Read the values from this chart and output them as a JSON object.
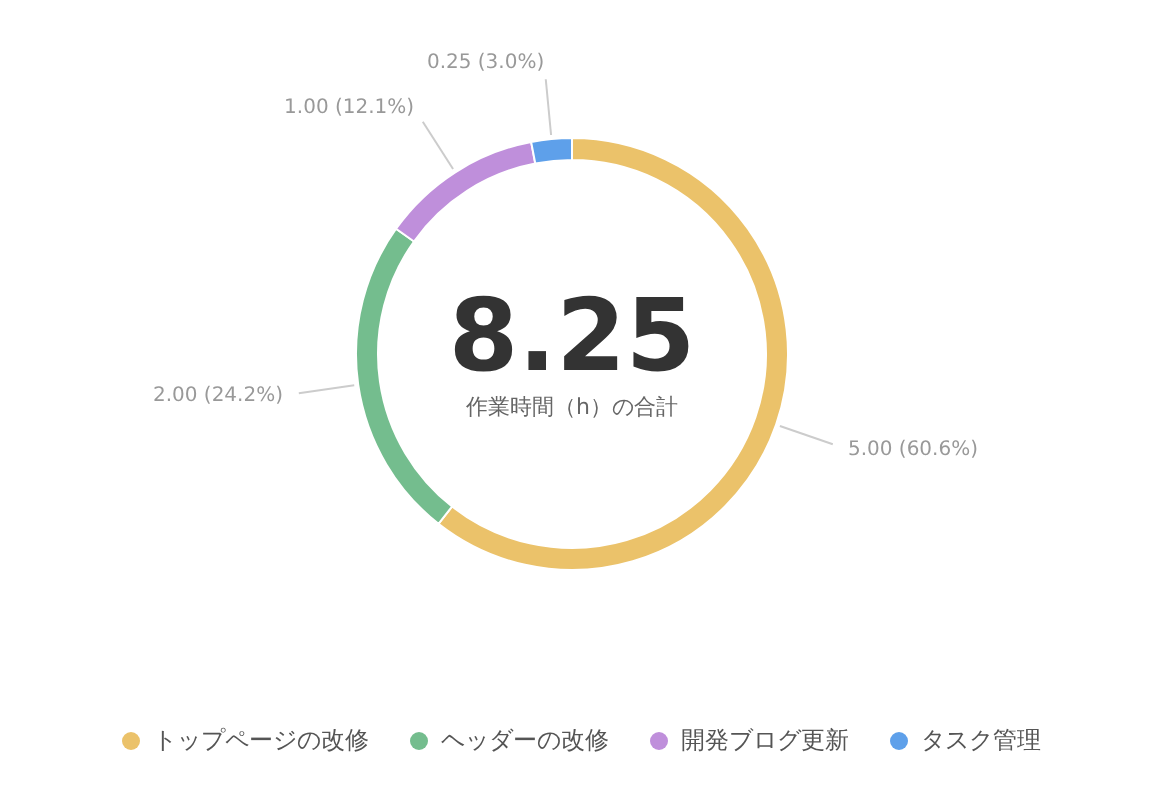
{
  "chart_data": {
    "type": "donut",
    "categories": [
      "トップページの改修",
      "ヘッダーの改修",
      "開発ブログ更新",
      "タスク管理"
    ],
    "values": [
      5,
      2,
      1,
      0.25
    ],
    "colors": [
      "#ebc26a",
      "#74bd8e",
      "#bf8fdb",
      "#5ea0ea"
    ],
    "value_labels": [
      "5.00 (60.6%)",
      "2.00 (24.2%)",
      "1.00 (12.1%)",
      "0.25 (3.0%)"
    ],
    "annotations": [
      "8.25",
      "作業時間（h）の合計"
    ],
    "legend": "bottom"
  }
}
